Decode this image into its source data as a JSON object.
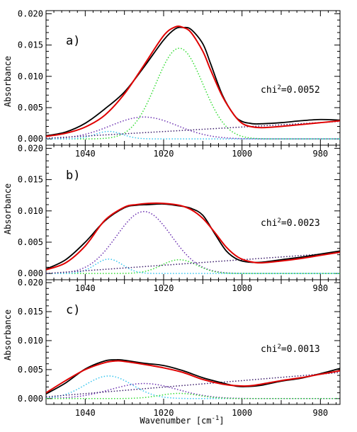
{
  "chart_data": {
    "type": "line",
    "xlabel": "Wavenumber [cm",
    "xlabel_sup": "-1",
    "xlabel_close": "]",
    "ylabel": "Absorbance",
    "xlim": [
      1050,
      975
    ],
    "x_reversed": true,
    "ylim": [
      -0.001,
      0.0205
    ],
    "x_ticks": [
      1040,
      1020,
      1000,
      980
    ],
    "y_ticks": [
      0.0,
      0.005,
      0.01,
      0.015,
      0.02
    ],
    "y_tick_labels": [
      "0.000",
      "0.005",
      "0.010",
      "0.015",
      "0.020"
    ],
    "colors": {
      "data": "#000000",
      "fit": "#e00000",
      "component_purple": "#6a2fb0",
      "component_green": "#33dd33",
      "component_cyan": "#33c4ee",
      "component_baseline": "#3a1a6a"
    },
    "panels": [
      {
        "label": "a)",
        "chi_label": "chi",
        "chi_sup": "2",
        "chi_value": "=0.0052",
        "data_line": {
          "x": [
            1050,
            1045,
            1040,
            1035,
            1030,
            1025,
            1020,
            1017,
            1015,
            1013,
            1010,
            1008,
            1005,
            1002,
            1000,
            998,
            996,
            990,
            985,
            980,
            975
          ],
          "y": [
            0.0005,
            0.0011,
            0.0025,
            0.0048,
            0.0075,
            0.0115,
            0.0158,
            0.0176,
            0.0178,
            0.0175,
            0.0152,
            0.012,
            0.007,
            0.0038,
            0.0028,
            0.0025,
            0.0024,
            0.0026,
            0.0029,
            0.0031,
            0.003
          ]
        },
        "fit_line": {
          "x": [
            1050,
            1045,
            1040,
            1035,
            1030,
            1025,
            1020,
            1017,
            1015,
            1013,
            1010,
            1008,
            1005,
            1002,
            1000,
            998,
            995,
            990,
            985,
            980,
            975
          ],
          "y": [
            0.0004,
            0.0009,
            0.0019,
            0.0038,
            0.0072,
            0.0118,
            0.0165,
            0.0179,
            0.0178,
            0.017,
            0.014,
            0.011,
            0.0068,
            0.0038,
            0.0025,
            0.002,
            0.0018,
            0.002,
            0.0023,
            0.0026,
            0.0029
          ]
        },
        "components": [
          {
            "color_key": "component_purple",
            "kind": "gauss",
            "center": 1025,
            "amplitude": 0.0035,
            "sigma": 8.5
          },
          {
            "color_key": "component_green",
            "kind": "gauss",
            "center": 1016,
            "amplitude": 0.0145,
            "sigma": 6.0
          },
          {
            "color_key": "component_cyan",
            "kind": "gauss",
            "center": 1034,
            "amplitude": 0.0012,
            "sigma": 3.5
          },
          {
            "color_key": "component_baseline",
            "kind": "linear",
            "y_start": 0.0001,
            "y_end": 0.0028
          }
        ]
      },
      {
        "label": "b)",
        "chi_label": "chi",
        "chi_sup": "2",
        "chi_value": "=0.0023",
        "data_line": {
          "x": [
            1050,
            1045,
            1040,
            1035,
            1030,
            1027,
            1024,
            1020,
            1016,
            1013,
            1010,
            1007,
            1004,
            1001,
            998,
            995,
            990,
            985,
            980,
            975
          ],
          "y": [
            0.0007,
            0.0022,
            0.005,
            0.0084,
            0.0105,
            0.0109,
            0.011,
            0.0111,
            0.0108,
            0.0104,
            0.0093,
            0.0064,
            0.0036,
            0.0022,
            0.0018,
            0.0018,
            0.0022,
            0.0026,
            0.0031,
            0.0036
          ]
        },
        "fit_line": {
          "x": [
            1050,
            1045,
            1040,
            1035,
            1030,
            1027,
            1024,
            1020,
            1016,
            1013,
            1010,
            1007,
            1004,
            1001,
            998,
            995,
            990,
            985,
            980,
            975
          ],
          "y": [
            0.0006,
            0.0017,
            0.0044,
            0.0085,
            0.0106,
            0.011,
            0.0112,
            0.0112,
            0.0109,
            0.0102,
            0.0088,
            0.0066,
            0.0042,
            0.0026,
            0.0019,
            0.0017,
            0.002,
            0.0024,
            0.0029,
            0.0034
          ]
        },
        "components": [
          {
            "color_key": "component_purple",
            "kind": "gauss",
            "center": 1025,
            "amplitude": 0.0099,
            "sigma": 7.0
          },
          {
            "color_key": "component_green",
            "kind": "gauss",
            "center": 1016,
            "amplitude": 0.0022,
            "sigma": 4.5
          },
          {
            "color_key": "component_cyan",
            "kind": "gauss",
            "center": 1034,
            "amplitude": 0.0023,
            "sigma": 3.5
          },
          {
            "color_key": "component_baseline",
            "kind": "linear",
            "y_start": 0.0,
            "y_end": 0.0033
          }
        ]
      },
      {
        "label": "c)",
        "chi_label": "chi",
        "chi_sup": "2",
        "chi_value": "=0.0013",
        "data_line": {
          "x": [
            1050,
            1045,
            1040,
            1035,
            1032,
            1030,
            1025,
            1020,
            1015,
            1010,
            1005,
            1001,
            998,
            995,
            990,
            985,
            980,
            975
          ],
          "y": [
            0.0008,
            0.0027,
            0.0051,
            0.0065,
            0.0067,
            0.0066,
            0.0061,
            0.0057,
            0.0048,
            0.0036,
            0.0027,
            0.0021,
            0.0021,
            0.0023,
            0.003,
            0.0035,
            0.0043,
            0.0052
          ]
        },
        "fit_line": {
          "x": [
            1050,
            1045,
            1040,
            1035,
            1032,
            1030,
            1025,
            1020,
            1015,
            1010,
            1005,
            1001,
            998,
            995,
            990,
            985,
            980,
            975
          ],
          "y": [
            0.001,
            0.0031,
            0.005,
            0.0062,
            0.0065,
            0.0064,
            0.0059,
            0.0053,
            0.0045,
            0.0033,
            0.0025,
            0.0022,
            0.0022,
            0.0025,
            0.0031,
            0.0036,
            0.0042,
            0.0048
          ]
        },
        "components": [
          {
            "color_key": "component_cyan",
            "kind": "gauss",
            "center": 1034,
            "amplitude": 0.0039,
            "sigma": 6.0
          },
          {
            "color_key": "component_purple",
            "kind": "gauss",
            "center": 1025,
            "amplitude": 0.0026,
            "sigma": 8.5
          },
          {
            "color_key": "component_green",
            "kind": "gauss",
            "center": 1016,
            "amplitude": 0.0009,
            "sigma": 5.0
          },
          {
            "color_key": "component_baseline",
            "kind": "linear",
            "y_start": 0.0003,
            "y_end": 0.0045
          }
        ]
      }
    ]
  }
}
